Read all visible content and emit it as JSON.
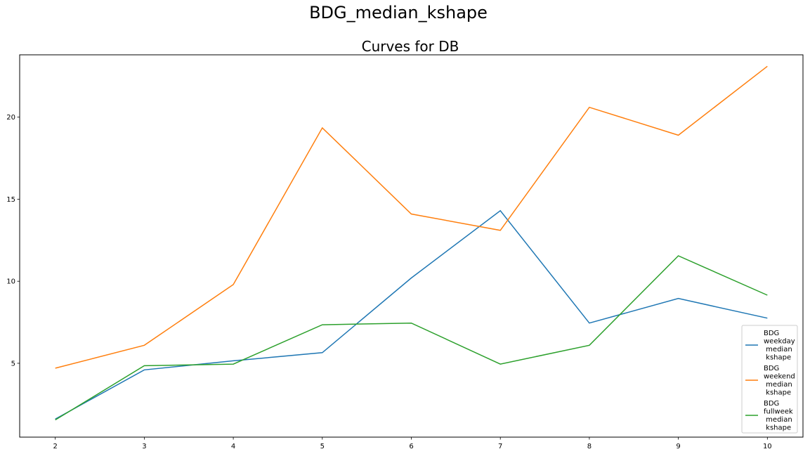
{
  "chart_data": {
    "type": "line",
    "suptitle": "BDG_median_kshape",
    "title": "Curves for DB",
    "xlabel": "",
    "ylabel": "",
    "x": [
      2,
      3,
      4,
      5,
      6,
      7,
      8,
      9,
      10
    ],
    "xlim": [
      1.6,
      10.4
    ],
    "ylim": [
      0.5,
      23.8
    ],
    "xticks": [
      "2",
      "3",
      "4",
      "5",
      "6",
      "7",
      "8",
      "9",
      "10"
    ],
    "yticks": [
      "5",
      "10",
      "15",
      "20"
    ],
    "ytick_values": [
      5,
      10,
      15,
      20
    ],
    "grid": false,
    "legend_position": "lower-right",
    "series": [
      {
        "name": "BDG\nweekday\n median\n kshape",
        "color": "#1f77b4",
        "values": [
          1.6,
          4.6,
          5.15,
          5.65,
          10.2,
          14.3,
          7.45,
          8.95,
          7.75
        ]
      },
      {
        "name": "BDG\nweekend\n median\n kshape",
        "color": "#ff7f0e",
        "values": [
          4.7,
          6.1,
          9.8,
          19.35,
          14.1,
          13.1,
          20.6,
          18.9,
          23.1
        ]
      },
      {
        "name": "BDG\nfullweek\n  median\n  kshape",
        "color": "#2ca02c",
        "values": [
          1.55,
          4.85,
          4.95,
          7.35,
          7.45,
          4.95,
          6.1,
          11.55,
          9.15
        ]
      }
    ]
  }
}
